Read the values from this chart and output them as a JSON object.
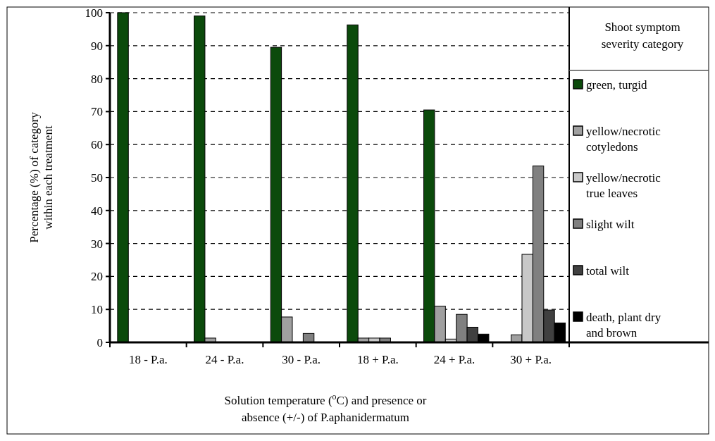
{
  "chart_data": {
    "type": "bar",
    "xlabel": "Solution temperature ($^{o}$C) and presence or absence (+/-) of P.aphanidermatum",
    "ylabel": "Percentage (%) of category within each treatment",
    "legend_title": "Shoot symptom severity category",
    "categories": [
      "18 - P.a.",
      "24 - P.a.",
      "30 - P.a.",
      "18 + P.a.",
      "24 + P.a.",
      "30 + P.a."
    ],
    "series": [
      {
        "name": "green, turgid",
        "color": "#0b4a0b",
        "values": [
          100,
          99,
          89.5,
          96.3,
          70.5,
          0
        ]
      },
      {
        "name": "yellow/necrotic cotyledons",
        "color": "#a0a0a0",
        "values": [
          0,
          1.3,
          7.7,
          1.3,
          11,
          2.3
        ]
      },
      {
        "name": "yellow/necrotic true leaves",
        "color": "#c8c8c8",
        "values": [
          0,
          0,
          0,
          1.3,
          1,
          26.7
        ]
      },
      {
        "name": "slight wilt",
        "color": "#808080",
        "values": [
          0,
          0,
          2.7,
          1.3,
          8.5,
          53.5
        ]
      },
      {
        "name": "total wilt",
        "color": "#404040",
        "values": [
          0,
          0,
          0,
          0,
          4.6,
          9.8
        ]
      },
      {
        "name": "death, plant dry and brown",
        "color": "#000000",
        "values": [
          0,
          0,
          0,
          0,
          2.5,
          5.9
        ]
      }
    ],
    "ylim": [
      0,
      100
    ],
    "yticks": [
      0,
      10,
      20,
      30,
      40,
      50,
      60,
      70,
      80,
      90,
      100
    ],
    "grid": "y",
    "legend": "right"
  }
}
